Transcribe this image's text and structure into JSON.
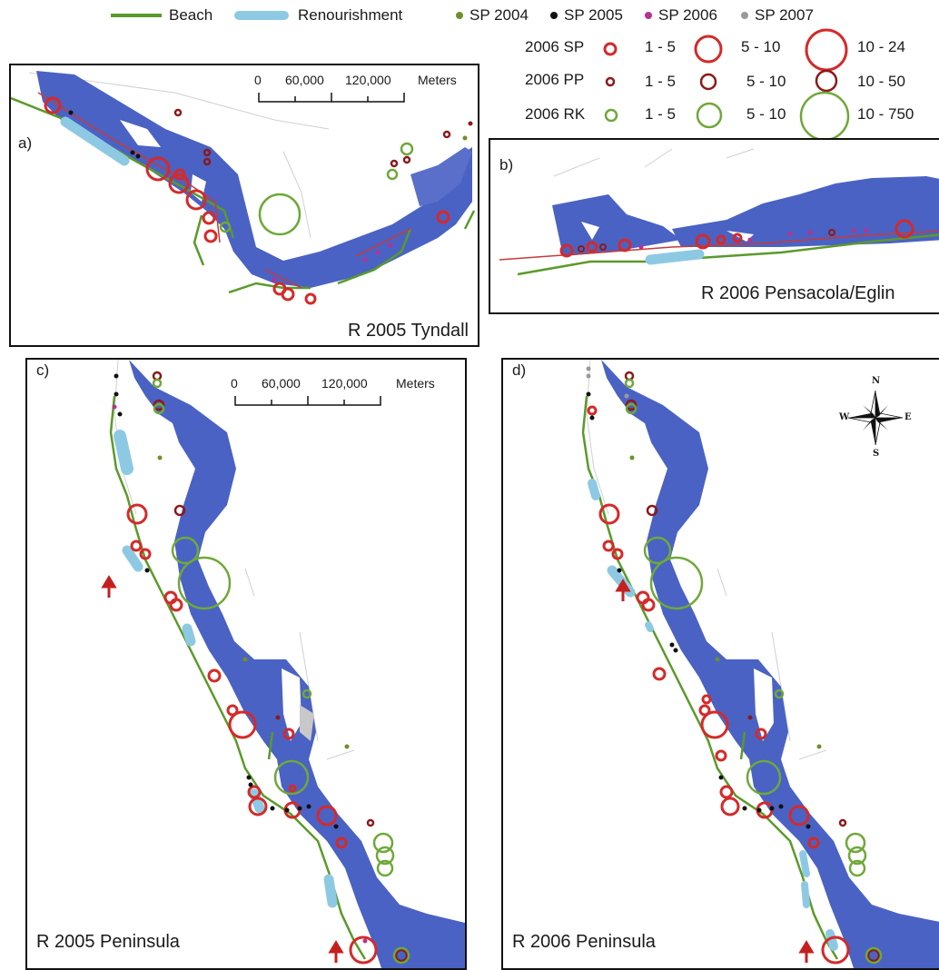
{
  "legend": {
    "items": [
      {
        "key": "beach",
        "label": "Beach",
        "color": "#5a9a2a",
        "symbol": "line"
      },
      {
        "key": "renourishment",
        "label": "Renourishment",
        "color": "#8ec9e3",
        "symbol": "thick-line"
      },
      {
        "key": "sp2004",
        "label": "SP 2004",
        "color": "#6e8f2a",
        "symbol": "dot"
      },
      {
        "key": "sp2005",
        "label": "SP 2005",
        "color": "#111111",
        "symbol": "dot"
      },
      {
        "key": "sp2006",
        "label": "SP 2006",
        "color": "#b5338f",
        "symbol": "dot"
      },
      {
        "key": "sp2007",
        "label": "SP 2007",
        "color": "#9a9a9a",
        "symbol": "dot"
      }
    ],
    "size_classes": [
      {
        "label": "2006 SP",
        "color": "#d42a2a",
        "bins": [
          "1 - 5",
          "5 - 10",
          "10 - 24"
        ]
      },
      {
        "label": "2006 PP",
        "color": "#8b1a1a",
        "bins": [
          "1 - 5",
          "5 - 10",
          "10 - 50"
        ]
      },
      {
        "label": "2006 RK",
        "color": "#6fa83a",
        "bins": [
          "1 - 5",
          "5 - 10",
          "10 - 750"
        ]
      }
    ]
  },
  "colors": {
    "water": "#4a62c3",
    "land_gray": "#c8c8c8",
    "beach": "#5a9a2a",
    "renourishment": "#8ec9e3",
    "sp_circle": "#d42a2a",
    "pp_circle": "#8b1a1a",
    "rk_circle": "#6fa83a",
    "arrow": "#c42020"
  },
  "panels": {
    "a": {
      "letter": "a)",
      "caption": "R 2005 Tyndall"
    },
    "b": {
      "letter": "b)",
      "caption": "R 2006 Pensacola/Eglin"
    },
    "c": {
      "letter": "c)",
      "caption": "R 2005 Peninsula"
    },
    "d": {
      "letter": "d)",
      "caption": "R 2006 Peninsula"
    }
  },
  "scale_bar": {
    "ticks": [
      "0",
      "60,000",
      "120,000"
    ],
    "unit": "Meters"
  },
  "compass": {
    "n": "N",
    "s": "S",
    "e": "E",
    "w": "W"
  }
}
